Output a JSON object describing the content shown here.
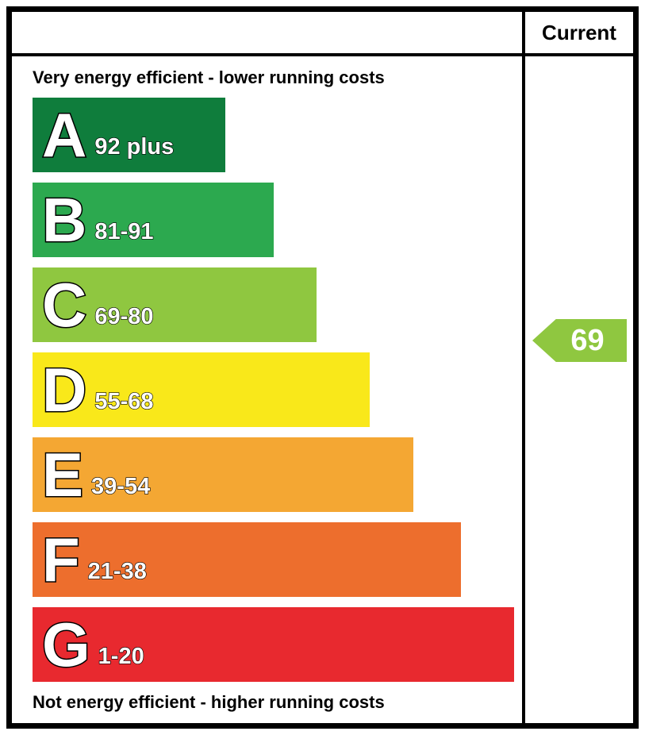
{
  "header": {
    "current_label": "Current"
  },
  "captions": {
    "top": "Very energy efficient - lower running costs",
    "bottom": "Not energy efficient - higher running costs"
  },
  "chart_data": {
    "type": "bar",
    "orientation": "horizontal",
    "categories": [
      "A",
      "B",
      "C",
      "D",
      "E",
      "F",
      "G"
    ],
    "bands": [
      {
        "letter": "A",
        "range": "92 plus",
        "min": 92,
        "max": 100,
        "color": "#0f7d3c",
        "width_pct": 40
      },
      {
        "letter": "B",
        "range": "81-91",
        "min": 81,
        "max": 91,
        "color": "#2ca94f",
        "width_pct": 50
      },
      {
        "letter": "C",
        "range": "69-80",
        "min": 69,
        "max": 80,
        "color": "#8fc740",
        "width_pct": 59
      },
      {
        "letter": "D",
        "range": "55-68",
        "min": 55,
        "max": 68,
        "color": "#f9e81a",
        "width_pct": 70
      },
      {
        "letter": "E",
        "range": "39-54",
        "min": 39,
        "max": 54,
        "color": "#f4a733",
        "width_pct": 79
      },
      {
        "letter": "F",
        "range": "21-38",
        "min": 21,
        "max": 38,
        "color": "#ed6e2d",
        "width_pct": 89
      },
      {
        "letter": "G",
        "range": "1-20",
        "min": 1,
        "max": 20,
        "color": "#e8292f",
        "width_pct": 100
      }
    ],
    "current": {
      "value": 69,
      "band": "C",
      "color": "#8fc740"
    }
  }
}
